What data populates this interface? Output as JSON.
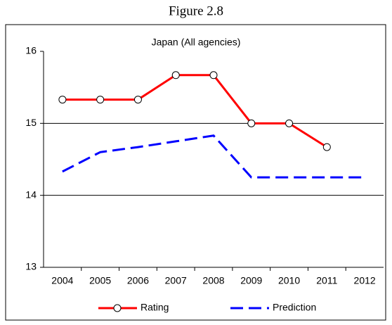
{
  "figure_title": "Figure 2.8",
  "chart_data": {
    "type": "line",
    "title": "Japan (All agencies)",
    "categories": [
      "2004",
      "2005",
      "2006",
      "2007",
      "2008",
      "2009",
      "2010",
      "2011",
      "2012"
    ],
    "series": [
      {
        "name": "Rating",
        "color": "#ff0000",
        "marker": "circle",
        "dash": false,
        "values": [
          15.33,
          15.33,
          15.33,
          15.67,
          15.67,
          15.0,
          15.0,
          14.67,
          null
        ]
      },
      {
        "name": "Prediction",
        "color": "#0000ff",
        "marker": "none",
        "dash": true,
        "values": [
          14.33,
          14.6,
          14.67,
          14.75,
          14.83,
          14.25,
          14.25,
          14.25,
          14.25
        ]
      }
    ],
    "ylim": [
      13,
      16
    ],
    "yticks": [
      13,
      14,
      15,
      16
    ],
    "grid": true,
    "legend": "bottom"
  }
}
